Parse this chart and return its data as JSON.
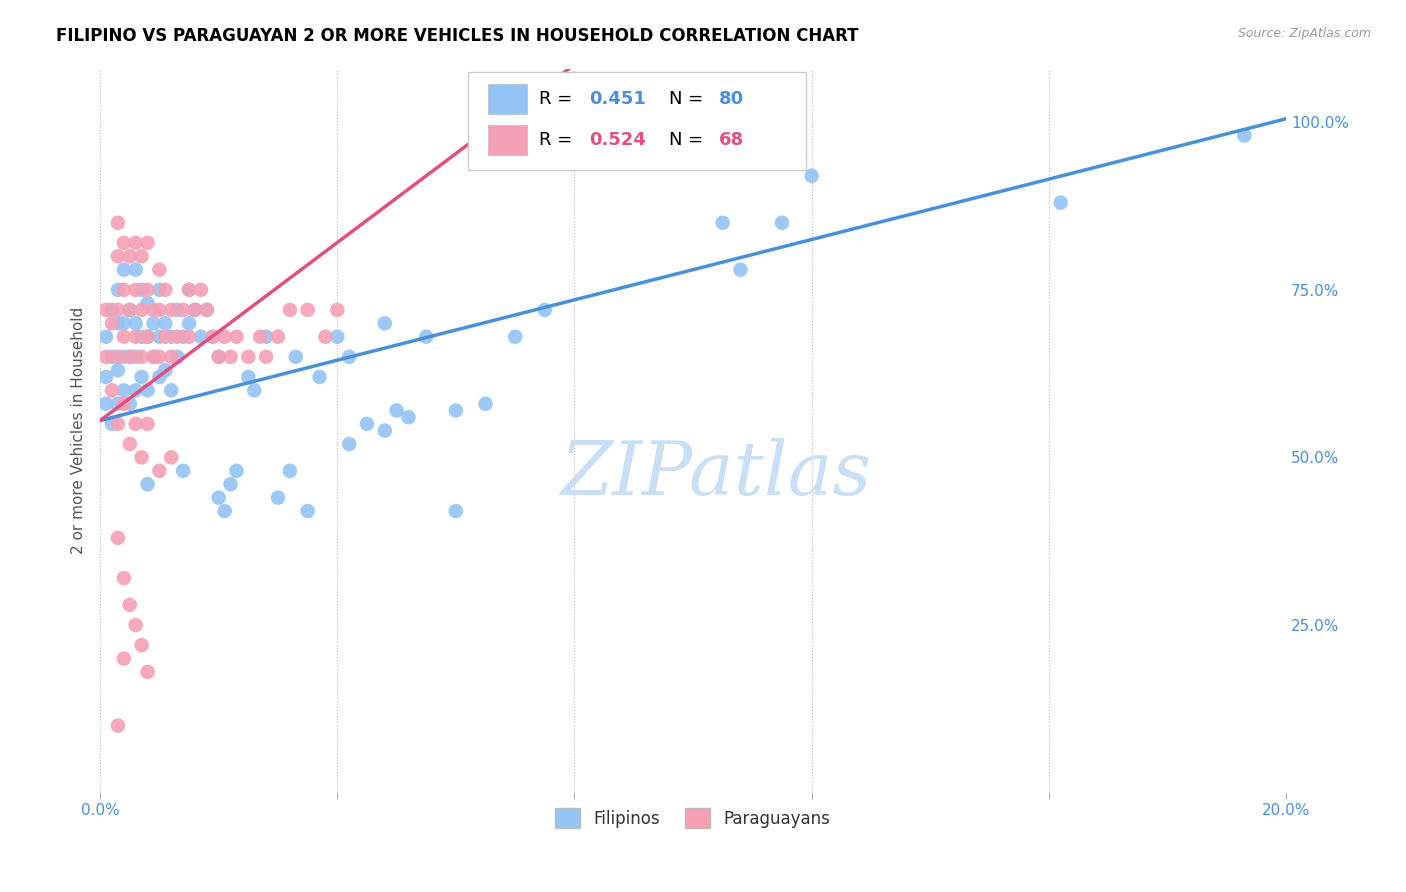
{
  "title": "FILIPINO VS PARAGUAYAN 2 OR MORE VEHICLES IN HOUSEHOLD CORRELATION CHART",
  "source": "Source: ZipAtlas.com",
  "ylabel": "2 or more Vehicles in Household",
  "x_min": 0.0,
  "x_max": 0.2,
  "y_min": 0.0,
  "y_max": 1.08,
  "y_ticks_right": [
    0.25,
    0.5,
    0.75,
    1.0
  ],
  "y_tick_labels_right": [
    "25.0%",
    "50.0%",
    "75.0%",
    "100.0%"
  ],
  "filipino_R": 0.451,
  "filipino_N": 80,
  "paraguayan_R": 0.524,
  "paraguayan_N": 68,
  "filipino_color": "#94c4f5",
  "paraguayan_color": "#f5a0b5",
  "filipino_line_color": "#4a90d9",
  "paraguayan_line_color": "#e05080",
  "watermark": "ZIPatlas",
  "watermark_color": "#c8dff5",
  "legend_label_1": "Filipinos",
  "legend_label_2": "Paraguayans",
  "filipino_x": [
    0.001,
    0.001,
    0.001,
    0.002,
    0.002,
    0.002,
    0.003,
    0.003,
    0.003,
    0.003,
    0.004,
    0.004,
    0.004,
    0.004,
    0.005,
    0.005,
    0.005,
    0.006,
    0.006,
    0.006,
    0.006,
    0.007,
    0.007,
    0.007,
    0.008,
    0.008,
    0.008,
    0.009,
    0.009,
    0.01,
    0.01,
    0.01,
    0.011,
    0.011,
    0.012,
    0.012,
    0.013,
    0.013,
    0.014,
    0.015,
    0.015,
    0.016,
    0.017,
    0.018,
    0.019,
    0.02,
    0.021,
    0.022,
    0.023,
    0.025,
    0.026,
    0.028,
    0.03,
    0.032,
    0.033,
    0.035,
    0.037,
    0.04,
    0.042,
    0.042,
    0.045,
    0.048,
    0.05,
    0.055,
    0.06,
    0.065,
    0.07,
    0.075,
    0.048,
    0.052,
    0.06,
    0.105,
    0.108,
    0.115,
    0.12,
    0.008,
    0.014,
    0.02,
    0.162,
    0.193
  ],
  "filipino_y": [
    0.58,
    0.62,
    0.68,
    0.55,
    0.65,
    0.72,
    0.58,
    0.63,
    0.7,
    0.75,
    0.6,
    0.65,
    0.7,
    0.78,
    0.58,
    0.65,
    0.72,
    0.6,
    0.65,
    0.7,
    0.78,
    0.62,
    0.68,
    0.75,
    0.6,
    0.68,
    0.73,
    0.65,
    0.7,
    0.62,
    0.68,
    0.75,
    0.63,
    0.7,
    0.6,
    0.68,
    0.65,
    0.72,
    0.68,
    0.7,
    0.75,
    0.72,
    0.68,
    0.72,
    0.68,
    0.65,
    0.42,
    0.46,
    0.48,
    0.62,
    0.6,
    0.68,
    0.44,
    0.48,
    0.65,
    0.42,
    0.62,
    0.68,
    0.65,
    0.52,
    0.55,
    0.7,
    0.57,
    0.68,
    0.42,
    0.58,
    0.68,
    0.72,
    0.54,
    0.56,
    0.57,
    0.85,
    0.78,
    0.85,
    0.92,
    0.46,
    0.48,
    0.44,
    0.88,
    0.98
  ],
  "paraguayan_x": [
    0.001,
    0.001,
    0.002,
    0.002,
    0.003,
    0.003,
    0.003,
    0.003,
    0.004,
    0.004,
    0.004,
    0.005,
    0.005,
    0.005,
    0.006,
    0.006,
    0.006,
    0.007,
    0.007,
    0.007,
    0.008,
    0.008,
    0.008,
    0.009,
    0.009,
    0.01,
    0.01,
    0.01,
    0.011,
    0.011,
    0.012,
    0.012,
    0.013,
    0.014,
    0.015,
    0.015,
    0.016,
    0.017,
    0.018,
    0.019,
    0.02,
    0.021,
    0.022,
    0.023,
    0.025,
    0.027,
    0.028,
    0.03,
    0.032,
    0.035,
    0.038,
    0.04,
    0.003,
    0.004,
    0.005,
    0.006,
    0.007,
    0.008,
    0.01,
    0.012,
    0.003,
    0.004,
    0.005,
    0.006,
    0.007,
    0.008,
    0.003,
    0.004
  ],
  "paraguayan_y": [
    0.65,
    0.72,
    0.6,
    0.7,
    0.65,
    0.72,
    0.8,
    0.85,
    0.68,
    0.75,
    0.82,
    0.65,
    0.72,
    0.8,
    0.68,
    0.75,
    0.82,
    0.65,
    0.72,
    0.8,
    0.68,
    0.75,
    0.82,
    0.65,
    0.72,
    0.65,
    0.72,
    0.78,
    0.68,
    0.75,
    0.65,
    0.72,
    0.68,
    0.72,
    0.68,
    0.75,
    0.72,
    0.75,
    0.72,
    0.68,
    0.65,
    0.68,
    0.65,
    0.68,
    0.65,
    0.68,
    0.65,
    0.68,
    0.72,
    0.72,
    0.68,
    0.72,
    0.55,
    0.58,
    0.52,
    0.55,
    0.5,
    0.55,
    0.48,
    0.5,
    0.38,
    0.32,
    0.28,
    0.25,
    0.22,
    0.18,
    0.1,
    0.2
  ],
  "fil_line_x0": 0.0,
  "fil_line_y0": 0.555,
  "fil_line_x1": 0.2,
  "fil_line_y1": 1.005,
  "par_line_x0": 0.0,
  "par_line_y0": 0.555,
  "par_line_x1": 0.055,
  "par_line_y1": 0.92
}
